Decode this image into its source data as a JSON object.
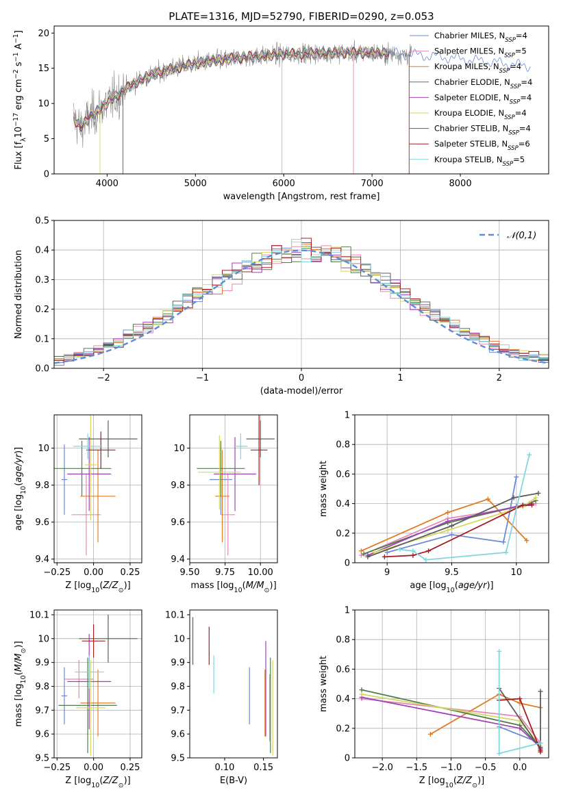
{
  "colors": {
    "series": [
      "#6a89d6",
      "#e589b4",
      "#e07b22",
      "#4f7d4a",
      "#a040b8",
      "#d6d85e",
      "#5c5c5c",
      "#a51c20",
      "#7fd6dd"
    ],
    "data_line": "#808080",
    "grid": "#b0b0b0",
    "normal_curve": "#5b8bd9"
  },
  "chart_data": [
    {
      "id": "spectrum",
      "type": "line",
      "title": "PLATE=1316, MJD=52790, FIBERID=0290, z=0.053",
      "xlabel": "wavelength [Angstrom, rest frame]",
      "ylabel": "Flux [f_λ10^-17 erg cm^-2 s^-1 A^-1]",
      "xlim": [
        3400,
        9000
      ],
      "ylim": [
        0,
        21
      ],
      "xticks": [
        4000,
        5000,
        6000,
        7000,
        8000
      ],
      "yticks": [
        0,
        5,
        10,
        15,
        20
      ],
      "grid": false,
      "legend_position": "top-right",
      "legend": [
        {
          "base": "Chabrier MILES, N",
          "sub": "SSP",
          "tail": "=4"
        },
        {
          "base": "Salpeter MILES, N",
          "sub": "SSP",
          "tail": "=5"
        },
        {
          "base": "Kroupa MILES, N",
          "sub": "SSP",
          "tail": "=4"
        },
        {
          "base": "Chabrier ELODIE, N",
          "sub": "SSP",
          "tail": "=4"
        },
        {
          "base": "Salpeter ELODIE, N",
          "sub": "SSP",
          "tail": "=4"
        },
        {
          "base": "Kroupa ELODIE, N",
          "sub": "SSP",
          "tail": "=4"
        },
        {
          "base": "Chabrier STELIB, N",
          "sub": "SSP",
          "tail": "=4"
        },
        {
          "base": "Salpeter STELIB, N",
          "sub": "SSP",
          "tail": "=6"
        },
        {
          "base": "Kroupa STELIB, N",
          "sub": "SSP",
          "tail": "=5"
        }
      ],
      "continuum": {
        "x": [
          3620,
          3700,
          3800,
          3900,
          4000,
          4100,
          4200,
          4300,
          4400,
          4500,
          4700,
          4900,
          5100,
          5300,
          5500,
          5800,
          6000,
          6300,
          6600,
          6900,
          7200,
          7500,
          7800,
          8100,
          8400,
          8800
        ],
        "y": [
          8.0,
          6.5,
          8.0,
          9.0,
          10.0,
          11.0,
          12.0,
          12.8,
          13.5,
          14.0,
          14.8,
          15.4,
          15.9,
          16.2,
          16.5,
          16.8,
          17.0,
          17.1,
          17.2,
          17.2,
          17.1,
          16.9,
          16.6,
          16.2,
          15.8,
          15.3
        ]
      },
      "model_extent": {
        "x_min": 3620,
        "x_max": 8800
      }
    },
    {
      "id": "residuals",
      "type": "histogram",
      "xlabel": "(data-model)/error",
      "ylabel": "Normed distribution",
      "xlim": [
        -2.5,
        2.5
      ],
      "ylim": [
        0,
        0.5
      ],
      "xticks": [
        -2,
        -1,
        0,
        1,
        2
      ],
      "yticks": [
        0.0,
        0.1,
        0.2,
        0.3,
        0.4,
        0.5
      ],
      "grid": true,
      "legend_position": "top-right",
      "normal_label": "𝒩(0,1)",
      "bin_edges": [
        -2.5,
        -2.4,
        -2.3,
        -2.2,
        -2.1,
        -2.0,
        -1.9,
        -1.8,
        -1.7,
        -1.6,
        -1.5,
        -1.4,
        -1.3,
        -1.2,
        -1.1,
        -1.0,
        -0.9,
        -0.8,
        -0.7,
        -0.6,
        -0.5,
        -0.4,
        -0.3,
        -0.2,
        -0.1,
        0.0,
        0.1,
        0.2,
        0.3,
        0.4,
        0.5,
        0.6,
        0.7,
        0.8,
        0.9,
        1.0,
        1.1,
        1.2,
        1.3,
        1.4,
        1.5,
        1.6,
        1.7,
        1.8,
        1.9,
        2.0,
        2.1,
        2.2,
        2.3,
        2.4,
        2.5
      ]
    },
    {
      "id": "age-vs-Z",
      "type": "errorbar",
      "xlabel": "Z [log10(Z/Z⊙)]",
      "ylabel": "age [log10(age/yr)]",
      "xlim": [
        -0.27,
        0.33
      ],
      "ylim": [
        9.38,
        10.18
      ],
      "xticks": [
        -0.25,
        0.0,
        0.25
      ],
      "xtick_labels": [
        "−0.25",
        "0.00",
        "0.25"
      ],
      "yticks": [
        9.4,
        9.6,
        9.8,
        10.0
      ],
      "grid": true,
      "points": [
        {
          "x": -0.2,
          "y": 9.83,
          "xerr": 0.02,
          "yerr": 0.19
        },
        {
          "x": -0.05,
          "y": 9.64,
          "xerr": 0.1,
          "yerr": 0.22
        },
        {
          "x": 0.03,
          "y": 9.74,
          "xerr": 0.12,
          "yerr": 0.25
        },
        {
          "x": -0.08,
          "y": 9.89,
          "xerr": 0.2,
          "yerr": 0.15
        },
        {
          "x": -0.03,
          "y": 9.86,
          "xerr": 0.15,
          "yerr": 0.2
        },
        {
          "x": -0.02,
          "y": 9.91,
          "xerr": 0.04,
          "yerr": 0.3
        },
        {
          "x": 0.1,
          "y": 10.05,
          "xerr": 0.2,
          "yerr": 0.1
        },
        {
          "x": 0.05,
          "y": 9.99,
          "xerr": 0.1,
          "yerr": 0.1
        },
        {
          "x": -0.04,
          "y": 10.01,
          "xerr": 0.1,
          "yerr": 0.07
        }
      ]
    },
    {
      "id": "age-vs-mass",
      "type": "errorbar",
      "xlabel": "mass [log10(M/M⊙)]",
      "ylabel": "",
      "xlim": [
        9.5,
        10.12
      ],
      "ylim": [
        9.38,
        10.18
      ],
      "xticks": [
        9.5,
        9.75,
        10.0
      ],
      "xtick_labels": [
        "9.50",
        "9.75",
        "10.00"
      ],
      "yticks": [
        9.4,
        9.6,
        9.8,
        10.0
      ],
      "grid": true,
      "points": [
        {
          "x": 9.72,
          "y": 9.83,
          "xerr": 0.08,
          "yerr": 0.19
        },
        {
          "x": 9.77,
          "y": 9.64,
          "xerr": 0.05,
          "yerr": 0.22
        },
        {
          "x": 9.73,
          "y": 9.74,
          "xerr": 0.05,
          "yerr": 0.25
        },
        {
          "x": 9.72,
          "y": 9.89,
          "xerr": 0.17,
          "yerr": 0.15
        },
        {
          "x": 9.82,
          "y": 9.86,
          "xerr": 0.15,
          "yerr": 0.2
        },
        {
          "x": 9.71,
          "y": 9.87,
          "xerr": 0.15,
          "yerr": 0.2
        },
        {
          "x": 10.0,
          "y": 10.05,
          "xerr": 0.1,
          "yerr": 0.1
        },
        {
          "x": 9.99,
          "y": 9.99,
          "xerr": 0.06,
          "yerr": 0.19
        },
        {
          "x": 9.86,
          "y": 10.01,
          "xerr": 0.05,
          "yerr": 0.07
        }
      ]
    },
    {
      "id": "weight-vs-age",
      "type": "line",
      "xlabel": "age [log10(age/yr)]",
      "ylabel": "mass weight",
      "xlim": [
        8.75,
        10.25
      ],
      "ylim": [
        0,
        1
      ],
      "xticks": [
        9.0,
        9.5,
        10.0
      ],
      "yticks": [
        0.0,
        0.2,
        0.4,
        0.6,
        0.8,
        1.0
      ],
      "grid": true,
      "series": [
        {
          "x": [
            9.0,
            9.5,
            9.9,
            9.95,
            10.0
          ],
          "y": [
            0.07,
            0.19,
            0.14,
            0.35,
            0.58
          ]
        },
        {
          "x": [
            8.8,
            9.47,
            10.05,
            10.15
          ],
          "y": [
            0.05,
            0.3,
            0.38,
            0.4
          ]
        },
        {
          "x": [
            8.8,
            9.47,
            9.78,
            10.08
          ],
          "y": [
            0.08,
            0.34,
            0.43,
            0.15
          ]
        },
        {
          "x": [
            8.82,
            9.47,
            10.1,
            10.15
          ],
          "y": [
            0.06,
            0.27,
            0.4,
            0.42
          ]
        },
        {
          "x": [
            8.85,
            9.47,
            10.0,
            10.12
          ],
          "y": [
            0.05,
            0.28,
            0.38,
            0.4
          ]
        },
        {
          "x": [
            8.9,
            9.47,
            10.05,
            10.15
          ],
          "y": [
            0.07,
            0.22,
            0.38,
            0.44
          ]
        },
        {
          "x": [
            8.85,
            9.5,
            9.98,
            10.17
          ],
          "y": [
            0.04,
            0.25,
            0.44,
            0.47
          ]
        },
        {
          "x": [
            8.98,
            9.2,
            9.32,
            10.05,
            10.12
          ],
          "y": [
            0.04,
            0.05,
            0.08,
            0.39,
            0.39
          ]
        },
        {
          "x": [
            9.1,
            9.2,
            9.3,
            9.92,
            10.1
          ],
          "y": [
            0.09,
            0.08,
            0.02,
            0.07,
            0.73
          ]
        }
      ]
    },
    {
      "id": "mass-vs-Z",
      "type": "errorbar",
      "xlabel": "Z [log10(Z/Z⊙)]",
      "ylabel": "mass [log10(M/M⊙)]",
      "xlim": [
        -0.27,
        0.33
      ],
      "ylim": [
        9.5,
        10.12
      ],
      "xticks": [
        -0.25,
        0.0,
        0.25
      ],
      "xtick_labels": [
        "−0.25",
        "0.00",
        "0.25"
      ],
      "yticks": [
        9.5,
        9.6,
        9.7,
        9.8,
        9.9,
        10.0,
        10.1
      ],
      "grid": true,
      "points": [
        {
          "x": -0.2,
          "y": 9.76,
          "xerr": 0.02,
          "yerr": 0.12
        },
        {
          "x": -0.1,
          "y": 9.83,
          "xerr": 0.1,
          "yerr": 0.08
        },
        {
          "x": 0.03,
          "y": 9.73,
          "xerr": 0.12,
          "yerr": 0.14
        },
        {
          "x": -0.04,
          "y": 9.72,
          "xerr": 0.2,
          "yerr": 0.2
        },
        {
          "x": -0.03,
          "y": 9.82,
          "xerr": 0.15,
          "yerr": 0.2
        },
        {
          "x": -0.02,
          "y": 9.71,
          "xerr": 0.1,
          "yerr": 0.2
        },
        {
          "x": 0.1,
          "y": 10.0,
          "xerr": 0.2,
          "yerr": 0.1
        },
        {
          "x": 0.0,
          "y": 9.99,
          "xerr": 0.08,
          "yerr": 0.07
        },
        {
          "x": -0.03,
          "y": 9.86,
          "xerr": 0.1,
          "yerr": 0.07
        }
      ]
    },
    {
      "id": "mass-vs-ebv",
      "type": "errorbar",
      "xlabel": "E(B-V)",
      "ylabel": "",
      "xlim": [
        0.055,
        0.168
      ],
      "ylim": [
        9.5,
        10.12
      ],
      "xticks": [
        0.1,
        0.15
      ],
      "xtick_labels": [
        "0.10",
        "0.15"
      ],
      "yticks": [
        9.5,
        9.6,
        9.7,
        9.8,
        9.9,
        10.0,
        10.1
      ],
      "grid": false,
      "points": [
        {
          "x": 0.132,
          "y": 9.76,
          "xerr": 0,
          "yerr": 0.12
        },
        {
          "x": 0.158,
          "y": 9.71,
          "xerr": 0,
          "yerr": 0.14
        },
        {
          "x": 0.152,
          "y": 9.73,
          "xerr": 0,
          "yerr": 0.14
        },
        {
          "x": 0.159,
          "y": 9.72,
          "xerr": 0,
          "yerr": 0.2
        },
        {
          "x": 0.153,
          "y": 9.79,
          "xerr": 0,
          "yerr": 0.2
        },
        {
          "x": 0.162,
          "y": 9.71,
          "xerr": 0,
          "yerr": 0.2
        },
        {
          "x": 0.059,
          "y": 9.99,
          "xerr": 0,
          "yerr": 0.1
        },
        {
          "x": 0.08,
          "y": 9.97,
          "xerr": 0,
          "yerr": 0.08
        },
        {
          "x": 0.086,
          "y": 9.85,
          "xerr": 0,
          "yerr": 0.08
        }
      ]
    },
    {
      "id": "weight-vs-Z",
      "type": "line",
      "xlabel": "Z [log10(Z/Z⊙)]",
      "ylabel": "mass weight",
      "xlim": [
        -2.4,
        0.42
      ],
      "ylim": [
        0,
        1
      ],
      "xticks": [
        -2.0,
        -1.5,
        -1.0,
        -0.5,
        0.0
      ],
      "xtick_labels": [
        "−2.0",
        "−1.5",
        "−1.0",
        "−0.5",
        "0.0"
      ],
      "yticks": [
        0.0,
        0.2,
        0.4,
        0.6,
        0.8,
        1.0
      ],
      "grid": true,
      "series": [
        {
          "x": [
            -0.3,
            0.3,
            0.3
          ],
          "y": [
            0.21,
            0.1,
            0.07
          ]
        },
        {
          "x": [
            -2.3,
            0.0,
            0.3
          ],
          "y": [
            0.4,
            0.28,
            0.1
          ]
        },
        {
          "x": [
            -1.3,
            -0.3,
            0.0,
            0.3
          ],
          "y": [
            0.16,
            0.43,
            0.37,
            0.34
          ]
        },
        {
          "x": [
            -2.3,
            0.0,
            0.3
          ],
          "y": [
            0.46,
            0.22,
            0.07
          ]
        },
        {
          "x": [
            -2.3,
            0.0,
            0.3
          ],
          "y": [
            0.41,
            0.2,
            0.07
          ]
        },
        {
          "x": [
            -2.3,
            0.0,
            0.3
          ],
          "y": [
            0.43,
            0.25,
            0.08
          ]
        },
        {
          "x": [
            -0.3,
            0.3,
            0.3
          ],
          "y": [
            0.47,
            0.06,
            0.45
          ]
        },
        {
          "x": [
            -0.3,
            0.0,
            0.3,
            0.3
          ],
          "y": [
            0.39,
            0.4,
            0.05,
            0.04
          ]
        },
        {
          "x": [
            -0.3,
            -0.3,
            0.3
          ],
          "y": [
            0.72,
            0.03,
            0.1
          ]
        }
      ]
    }
  ]
}
